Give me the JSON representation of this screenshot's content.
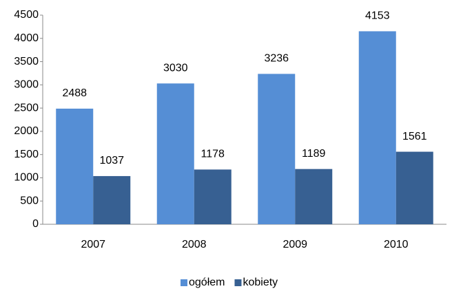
{
  "chart_data": {
    "type": "bar",
    "categories": [
      "2007",
      "2008",
      "2009",
      "2010"
    ],
    "series": [
      {
        "name": "ogółem",
        "color": "#558ed5",
        "values": [
          2488,
          3030,
          3236,
          4153
        ]
      },
      {
        "name": "kobiety",
        "color": "#376092",
        "values": [
          1037,
          1178,
          1189,
          1561
        ]
      }
    ],
    "ylim": [
      0,
      4500
    ],
    "yticks": [
      0,
      500,
      1000,
      1500,
      2000,
      2500,
      3000,
      3500,
      4000,
      4500
    ],
    "grid": false,
    "data_labels": true,
    "legend": "bottom"
  }
}
